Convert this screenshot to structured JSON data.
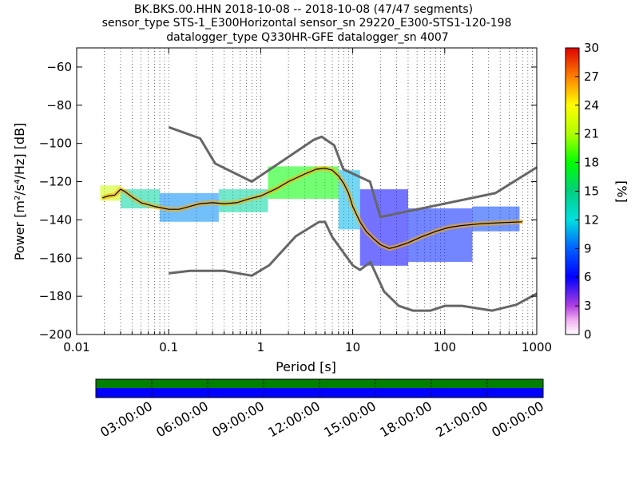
{
  "title": {
    "line1": "BK.BKS.00.HHN   2018-10-08 -- 2018-10-08  (47/47 segments)",
    "line2": "sensor_type STS-1_E300Horizontal sensor_sn 29220_E300-STS1-120-198",
    "line3": "datalogger_type Q330HR-GFE datalogger_sn 4007"
  },
  "chart_data": {
    "type": "heatmap",
    "xlabel": "Period [s]",
    "ylabel": "Power [m²/s⁴/Hz] [dB]",
    "xscale": "log",
    "xlim": [
      0.01,
      1000
    ],
    "ylim": [
      -200,
      -50
    ],
    "x_ticks": [
      {
        "value": 0.01,
        "label": "0.01"
      },
      {
        "value": 0.1,
        "label": "0.1"
      },
      {
        "value": 1,
        "label": "1"
      },
      {
        "value": 10,
        "label": "10"
      },
      {
        "value": 100,
        "label": "100"
      },
      {
        "value": 1000,
        "label": "1000"
      }
    ],
    "y_ticks": [
      {
        "value": -60,
        "label": "−60"
      },
      {
        "value": -80,
        "label": "−80"
      },
      {
        "value": -100,
        "label": "−100"
      },
      {
        "value": -120,
        "label": "−120"
      },
      {
        "value": -140,
        "label": "−140"
      },
      {
        "value": -160,
        "label": "−160"
      },
      {
        "value": -180,
        "label": "−180"
      },
      {
        "value": -200,
        "label": "−200"
      }
    ],
    "grid": "dotted-vertical",
    "colorbar": {
      "label": "[%]",
      "range": [
        0,
        30
      ],
      "ticks": [
        {
          "value": 0,
          "label": "0"
        },
        {
          "value": 3,
          "label": "3"
        },
        {
          "value": 6,
          "label": "6"
        },
        {
          "value": 9,
          "label": "9"
        },
        {
          "value": 12,
          "label": "12"
        },
        {
          "value": 15,
          "label": "15"
        },
        {
          "value": 18,
          "label": "18"
        },
        {
          "value": 21,
          "label": "21"
        },
        {
          "value": 24,
          "label": "24"
        },
        {
          "value": 27,
          "label": "27"
        },
        {
          "value": 30,
          "label": "30"
        }
      ]
    },
    "nhnm": {
      "period": [
        0.1,
        0.22,
        0.32,
        0.8,
        3.8,
        4.6,
        6.3,
        7.9,
        15.4,
        20,
        354.8,
        1000
      ],
      "db": [
        -91.5,
        -97.4,
        -110.5,
        -120,
        -98,
        -96.5,
        -101,
        -113.5,
        -120,
        -138.5,
        -126,
        -112.5
      ]
    },
    "nlnm": {
      "period": [
        0.1,
        0.17,
        0.4,
        0.8,
        1.24,
        2.4,
        4.3,
        5,
        6,
        10,
        12,
        15.6,
        21.9,
        31.6,
        45,
        70,
        101,
        154,
        328,
        600,
        1000
      ],
      "db": [
        -168,
        -166.7,
        -166.7,
        -169.2,
        -163.7,
        -148.6,
        -141.1,
        -141.1,
        -149,
        -163.8,
        -166.2,
        -162.1,
        -177.5,
        -185,
        -187.5,
        -187.5,
        -185,
        -185,
        -187.5,
        -184.4,
        -178.6
      ]
    },
    "mean_psd": {
      "period": [
        0.019,
        0.022,
        0.026,
        0.03,
        0.033,
        0.04,
        0.05,
        0.07,
        0.1,
        0.13,
        0.17,
        0.22,
        0.3,
        0.4,
        0.55,
        0.75,
        1,
        1.5,
        2,
        3,
        4,
        5,
        6,
        7,
        8,
        9,
        10,
        12,
        14,
        17,
        20,
        25,
        30,
        40,
        55,
        80,
        110,
        150,
        250,
        400,
        700
      ],
      "db": [
        -128.5,
        -127.5,
        -127,
        -124,
        -125,
        -128,
        -131,
        -133,
        -134.5,
        -134.5,
        -133,
        -131.5,
        -131,
        -131.5,
        -131,
        -129,
        -127.5,
        -123.5,
        -120,
        -116,
        -113.5,
        -113,
        -114,
        -117,
        -121,
        -126,
        -133,
        -141,
        -146,
        -150,
        -153,
        -155,
        -154,
        -152,
        -149,
        -146,
        -144,
        -143,
        -142,
        -141.5,
        -141
      ]
    },
    "density_bands": [
      {
        "period": [
          0.018,
          0.03
        ],
        "db": [
          -130,
          -122
        ],
        "percent": 22
      },
      {
        "period": [
          0.03,
          0.08
        ],
        "db": [
          -134,
          -124
        ],
        "percent": 14
      },
      {
        "period": [
          0.08,
          0.35
        ],
        "db": [
          -141,
          -126
        ],
        "percent": 10
      },
      {
        "period": [
          0.35,
          1.2
        ],
        "db": [
          -136,
          -124
        ],
        "percent": 14
      },
      {
        "period": [
          1.2,
          7
        ],
        "db": [
          -129,
          -112
        ],
        "percent": 18
      },
      {
        "period": [
          7,
          12
        ],
        "db": [
          -145,
          -114
        ],
        "percent": 11
      },
      {
        "period": [
          12,
          40
        ],
        "db": [
          -164,
          -124
        ],
        "percent": 6
      },
      {
        "period": [
          40,
          200
        ],
        "db": [
          -162,
          -134
        ],
        "percent": 7
      },
      {
        "period": [
          200,
          650
        ],
        "db": [
          -146,
          -133
        ],
        "percent": 8
      }
    ],
    "time_axis": {
      "labels": [
        "03:00:00",
        "06:00:00",
        "09:00:00",
        "12:00:00",
        "15:00:00",
        "18:00:00",
        "21:00:00",
        "00:00:00"
      ],
      "coverage_colors": [
        "#008000",
        "#0000ff"
      ]
    },
    "colors": {
      "noise_model": "#666666",
      "mean_line": "#000000"
    }
  }
}
